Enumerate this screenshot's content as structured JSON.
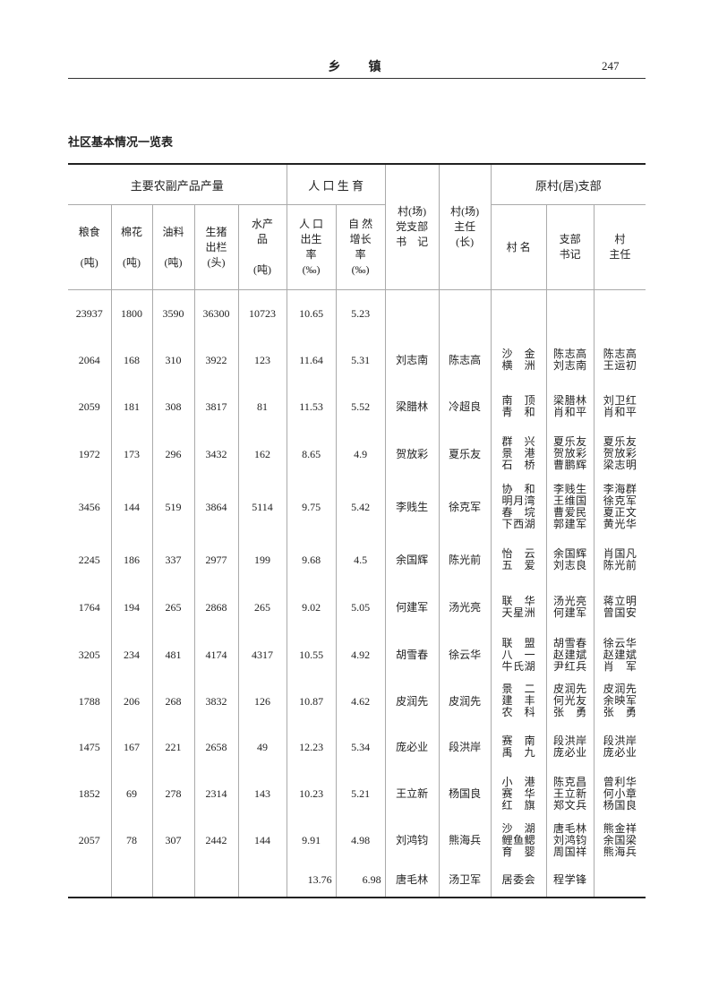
{
  "page_header": {
    "title": "乡　　镇",
    "page_number": "247"
  },
  "caption": "社区基本情况一览表",
  "table": {
    "group_headers": {
      "production": "主要农副产品产量",
      "population": "人 口 生 育",
      "party_secretary": "村(场)党支部书　记",
      "director": "村(场)主任(长)",
      "former_branch": "原村(居)支部"
    },
    "columns": [
      "粮食 (吨)",
      "棉花 (吨)",
      "油料 (吨)",
      "生猪出栏 (头)",
      "水产品 (吨)",
      "人 口出生率 (‰)",
      "自 然增长率 (‰)",
      "村(场)党支部书 记",
      "村(场)主任(长)",
      "村 名",
      "支部书记",
      "村主任"
    ],
    "column_lines": [
      [
        "粮食",
        "",
        "(吨)"
      ],
      [
        "棉花",
        "",
        "(吨)"
      ],
      [
        "油料",
        "",
        "(吨)"
      ],
      [
        "生猪",
        "出栏",
        "(头)"
      ],
      [
        "水产",
        "品",
        "",
        "(吨)"
      ],
      [
        "人 口",
        "出生",
        "率",
        "(‰)"
      ],
      [
        "自 然",
        "增长",
        "率",
        "(‰)"
      ]
    ],
    "branch_columns": [
      "村 名",
      "支部\n书记",
      "村\n主任"
    ],
    "rows": [
      {
        "grain": "23937",
        "cotton": "1800",
        "oil": "3590",
        "pigs": "36300",
        "aquatic": "10723",
        "birth_rate": "10.65",
        "growth_rate": "5.23",
        "secretary": "",
        "director": "",
        "villages": [],
        "branch_secretaries": [],
        "chiefs": []
      },
      {
        "grain": "2064",
        "cotton": "168",
        "oil": "310",
        "pigs": "3922",
        "aquatic": "123",
        "birth_rate": "11.64",
        "growth_rate": "5.31",
        "secretary": "刘志南",
        "director": "陈志高",
        "villages": [
          "沙金",
          "横洲"
        ],
        "branch_secretaries": [
          "陈志高",
          "刘志南"
        ],
        "chiefs": [
          "陈志高",
          "王运初"
        ]
      },
      {
        "grain": "2059",
        "cotton": "181",
        "oil": "308",
        "pigs": "3817",
        "aquatic": "81",
        "birth_rate": "11.53",
        "growth_rate": "5.52",
        "secretary": "梁腊林",
        "director": "冷超良",
        "villages": [
          "南顶",
          "青和"
        ],
        "branch_secretaries": [
          "梁腊林",
          "肖和平"
        ],
        "chiefs": [
          "刘卫红",
          "肖和平"
        ]
      },
      {
        "grain": "1972",
        "cotton": "173",
        "oil": "296",
        "pigs": "3432",
        "aquatic": "162",
        "birth_rate": "8.65",
        "growth_rate": "4.9",
        "secretary": "贺放彩",
        "director": "夏乐友",
        "villages": [
          "群兴",
          "景港",
          "石桥"
        ],
        "branch_secretaries": [
          "夏乐友",
          "贺放彩",
          "曹鹏辉"
        ],
        "chiefs": [
          "夏乐友",
          "贺放彩",
          "梁志明"
        ]
      },
      {
        "grain": "3456",
        "cotton": "144",
        "oil": "519",
        "pigs": "3864",
        "aquatic": "5114",
        "birth_rate": "9.75",
        "growth_rate": "5.42",
        "secretary": "李贱生",
        "director": "徐克军",
        "villages": [
          "协和",
          "明月湾",
          "春垸",
          "下西湖"
        ],
        "branch_secretaries": [
          "李贱生",
          "王维国",
          "曹爱民",
          "郭建军"
        ],
        "chiefs": [
          "李海群",
          "徐克军",
          "夏正文",
          "黄光华"
        ]
      },
      {
        "grain": "2245",
        "cotton": "186",
        "oil": "337",
        "pigs": "2977",
        "aquatic": "199",
        "birth_rate": "9.68",
        "growth_rate": "4.5",
        "secretary": "余国辉",
        "director": "陈光前",
        "villages": [
          "怡云",
          "五爱"
        ],
        "branch_secretaries": [
          "余国辉",
          "刘志良"
        ],
        "chiefs": [
          "肖国凡",
          "陈光前"
        ]
      },
      {
        "grain": "1764",
        "cotton": "194",
        "oil": "265",
        "pigs": "2868",
        "aquatic": "265",
        "birth_rate": "9.02",
        "growth_rate": "5.05",
        "secretary": "何建军",
        "director": "汤光亮",
        "villages": [
          "联华",
          "天星洲"
        ],
        "branch_secretaries": [
          "汤光亮",
          "何建军"
        ],
        "chiefs": [
          "蒋立明",
          "曾国安"
        ]
      },
      {
        "grain": "3205",
        "cotton": "234",
        "oil": "481",
        "pigs": "4174",
        "aquatic": "4317",
        "birth_rate": "10.55",
        "growth_rate": "4.92",
        "secretary": "胡雪春",
        "director": "徐云华",
        "villages": [
          "联盟",
          "八一",
          "牛氏湖"
        ],
        "branch_secretaries": [
          "胡雪春",
          "赵建斌",
          "尹红兵"
        ],
        "chiefs": [
          "徐云华",
          "赵建斌",
          "肖军"
        ]
      },
      {
        "grain": "1788",
        "cotton": "206",
        "oil": "268",
        "pigs": "3832",
        "aquatic": "126",
        "birth_rate": "10.87",
        "growth_rate": "4.62",
        "secretary": "皮润先",
        "director": "皮润先",
        "villages": [
          "景二",
          "建丰",
          "农科"
        ],
        "branch_secretaries": [
          "皮润先",
          "何光友",
          "张勇"
        ],
        "chiefs": [
          "皮润先",
          "余映军",
          "张勇"
        ]
      },
      {
        "grain": "1475",
        "cotton": "167",
        "oil": "221",
        "pigs": "2658",
        "aquatic": "49",
        "birth_rate": "12.23",
        "growth_rate": "5.34",
        "secretary": "庞必业",
        "director": "段洪岸",
        "villages": [
          "赛南",
          "禹九"
        ],
        "branch_secretaries": [
          "段洪岸",
          "庞必业"
        ],
        "chiefs": [
          "段洪岸",
          "庞必业"
        ]
      },
      {
        "grain": "1852",
        "cotton": "69",
        "oil": "278",
        "pigs": "2314",
        "aquatic": "143",
        "birth_rate": "10.23",
        "growth_rate": "5.21",
        "secretary": "王立新",
        "director": "杨国良",
        "villages": [
          "小港",
          "赛华",
          "红旗"
        ],
        "branch_secretaries": [
          "陈克昌",
          "王立新",
          "郑文兵"
        ],
        "chiefs": [
          "曾利华",
          "何小章",
          "杨国良"
        ]
      },
      {
        "grain": "2057",
        "cotton": "78",
        "oil": "307",
        "pigs": "2442",
        "aquatic": "144",
        "birth_rate": "9.91",
        "growth_rate": "4.98",
        "secretary": "刘鸿钧",
        "director": "熊海兵",
        "villages": [
          "沙湖",
          "鲤鱼鳃",
          "育婴"
        ],
        "branch_secretaries": [
          "唐毛林",
          "刘鸿钧",
          "周国祥"
        ],
        "chiefs": [
          "熊金祥",
          "余国梁",
          "熊海兵"
        ]
      },
      {
        "grain": "",
        "cotton": "",
        "oil": "",
        "pigs": "",
        "aquatic": "",
        "birth_rate": "13.76",
        "growth_rate": "6.98",
        "secretary": "唐毛林",
        "director": "汤卫军",
        "villages": [
          "居委会"
        ],
        "branch_secretaries": [
          "程学锋"
        ],
        "chiefs": []
      }
    ]
  }
}
